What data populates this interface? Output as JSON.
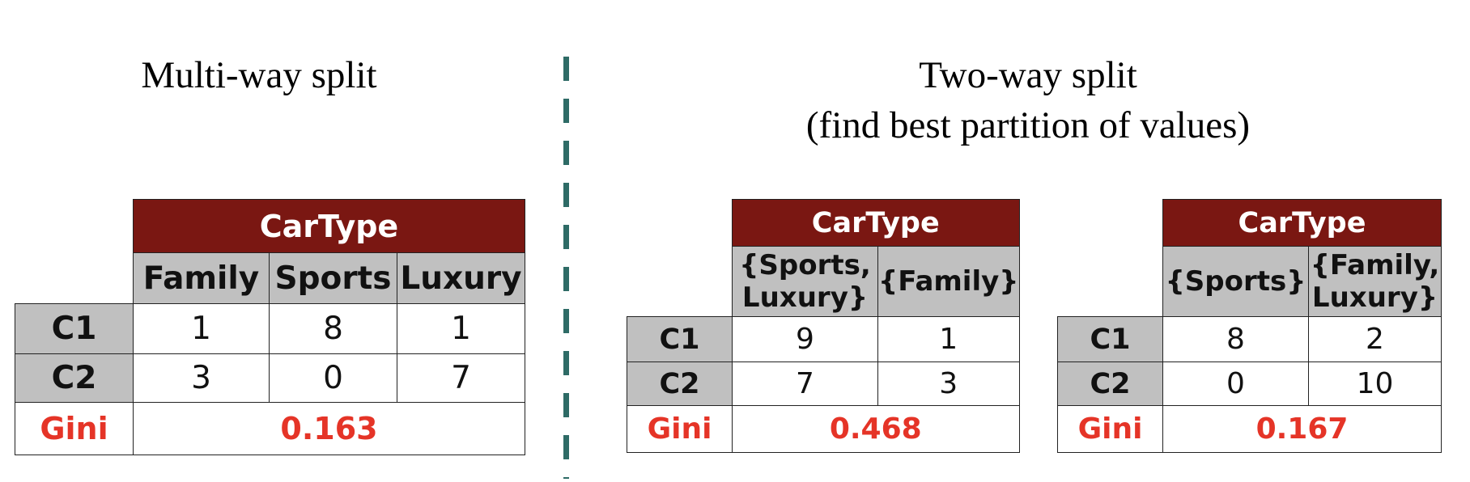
{
  "multi_way": {
    "title": "Multi-way split",
    "header": "CarType",
    "columns": [
      "Family",
      "Sports",
      "Luxury"
    ],
    "rows": [
      {
        "label": "C1",
        "values": [
          "1",
          "8",
          "1"
        ]
      },
      {
        "label": "C2",
        "values": [
          "3",
          "0",
          "7"
        ]
      }
    ],
    "gini_label": "Gini",
    "gini_value": "0.163"
  },
  "two_way": {
    "title_line1": "Two-way split",
    "title_line2": "(find best partition of values)",
    "tables": [
      {
        "header": "CarType",
        "columns": [
          [
            "{Sports,",
            "Luxury}"
          ],
          [
            "{Family}"
          ]
        ],
        "rows": [
          {
            "label": "C1",
            "values": [
              "9",
              "1"
            ]
          },
          {
            "label": "C2",
            "values": [
              "7",
              "3"
            ]
          }
        ],
        "gini_label": "Gini",
        "gini_value": "0.468"
      },
      {
        "header": "CarType",
        "columns": [
          [
            "{Sports}"
          ],
          [
            "{Family,",
            "Luxury}"
          ]
        ],
        "rows": [
          {
            "label": "C1",
            "values": [
              "8",
              "2"
            ]
          },
          {
            "label": "C2",
            "values": [
              "0",
              "10"
            ]
          }
        ],
        "gini_label": "Gini",
        "gini_value": "0.167"
      }
    ]
  },
  "colors": {
    "header_bg": "#7a1712",
    "value_bg": "#c0c0c0",
    "gini_text": "#e53427",
    "divider": "#2e6b66"
  }
}
